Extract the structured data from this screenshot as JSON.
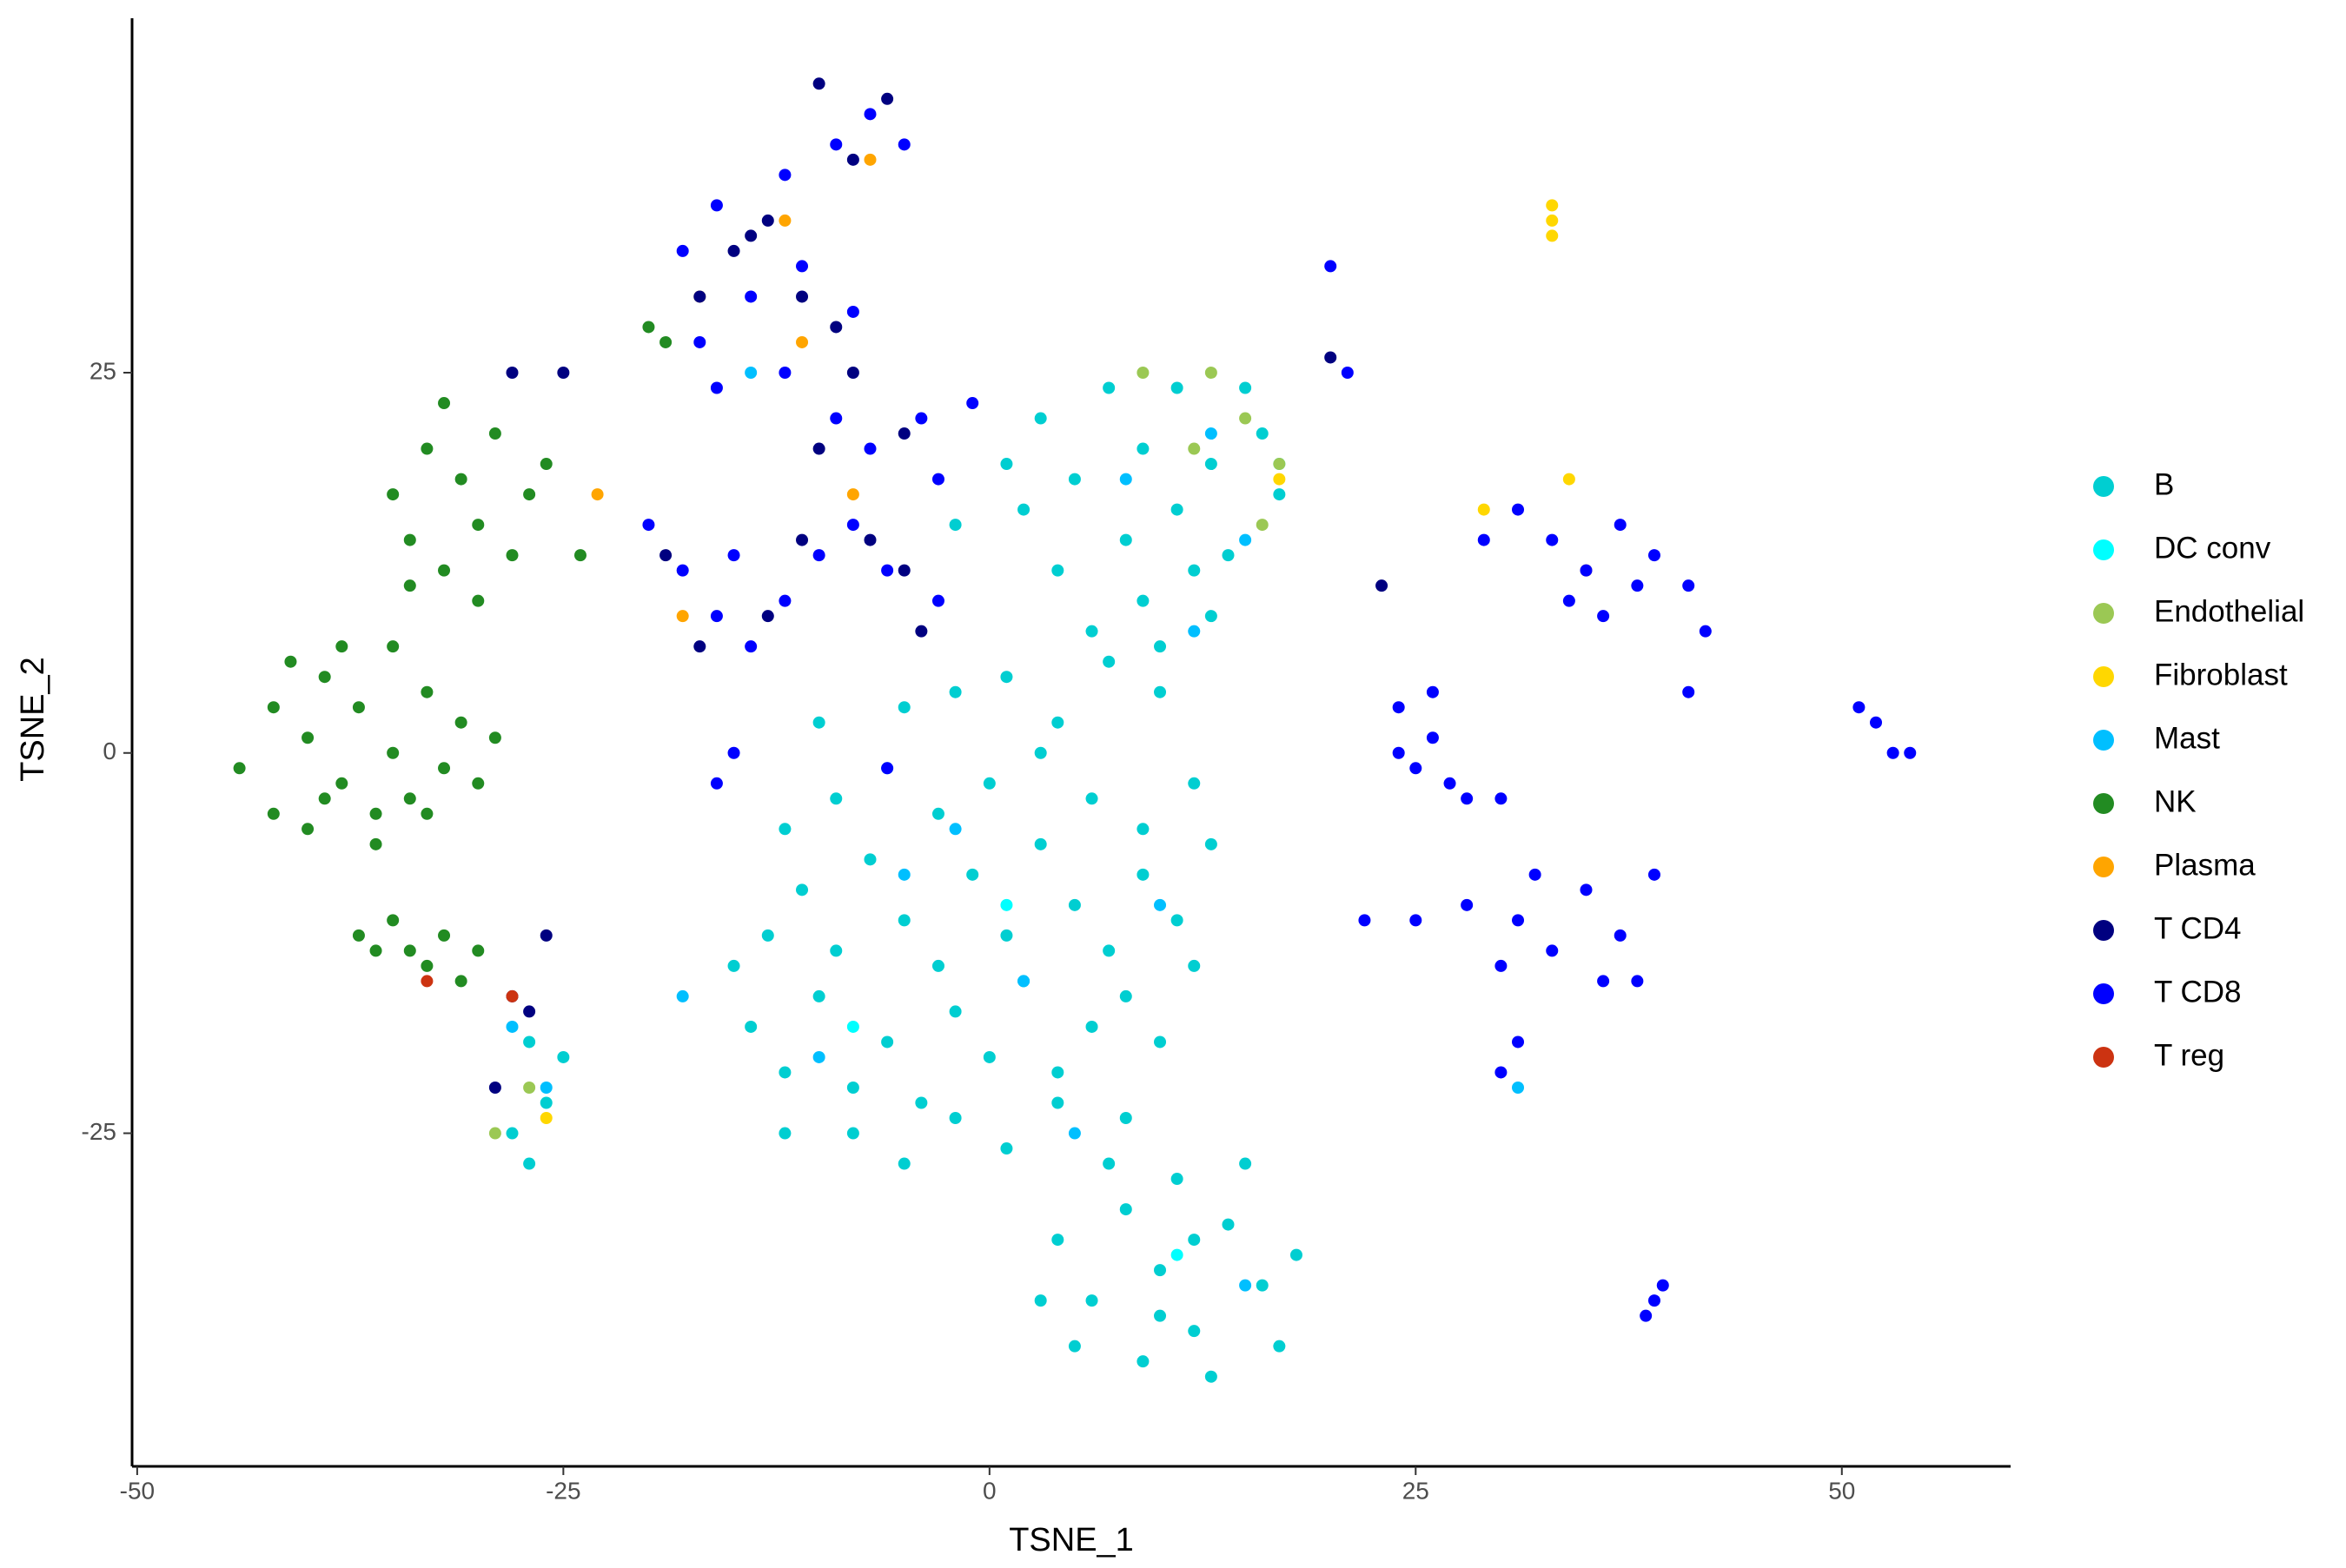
{
  "chart_data": {
    "type": "scatter",
    "xlabel": "TSNE_1",
    "ylabel": "TSNE_2",
    "xlim": [
      -50.3,
      59.9
    ],
    "ylim": [
      -46.9,
      48.3
    ],
    "xticks": [
      -50,
      -25,
      0,
      25,
      50
    ],
    "yticks": [
      -25,
      0,
      25
    ],
    "grid": false,
    "legend": "right",
    "series": [
      {
        "name": "B",
        "color": "#00CED1",
        "x": [
          -14,
          -12,
          -10,
          -8,
          -6,
          -4,
          -2,
          0,
          2,
          4,
          6,
          8,
          10,
          12,
          -13,
          -11,
          -9,
          -7,
          -5,
          -3,
          -1,
          1,
          3,
          5,
          7,
          9,
          11,
          -15,
          -12,
          -9,
          -6,
          -3,
          0,
          3,
          6,
          9,
          12,
          -10,
          -5,
          -2,
          1,
          4,
          7,
          10,
          13,
          -8,
          -5,
          -2,
          1,
          4,
          -12,
          8,
          6,
          9,
          12,
          8,
          11,
          14,
          5,
          9,
          13,
          16,
          3,
          7,
          11,
          15,
          2,
          17,
          10,
          13,
          4,
          -2,
          1,
          4,
          6,
          8,
          10,
          12,
          14,
          16,
          18,
          5,
          9,
          13,
          7,
          11,
          15,
          17,
          3,
          10,
          12,
          -28,
          -27,
          -26,
          -25,
          -27
        ],
        "values": [
          -18,
          -21,
          -16,
          -22,
          -19,
          -23,
          -17,
          -20,
          -15,
          -21,
          -18,
          -16,
          -19,
          -14,
          -12,
          -9,
          -13,
          -7,
          -11,
          -14,
          -8,
          -12,
          -6,
          -10,
          -13,
          -8,
          -11,
          -14,
          -5,
          -3,
          -1,
          -4,
          -2,
          0,
          -3,
          -5,
          -2,
          2,
          3,
          4,
          5,
          2,
          6,
          4,
          -6,
          -25,
          -27,
          -24,
          -26,
          -23,
          -25,
          -24,
          8,
          10,
          12,
          14,
          16,
          13,
          18,
          20,
          19,
          21,
          22,
          24,
          24,
          24,
          16,
          17,
          7,
          9,
          12,
          15,
          19,
          -32,
          -36,
          -30,
          -34,
          -38,
          -31,
          -35,
          -33,
          -39,
          -40,
          -41,
          -27,
          -28,
          -27,
          -39,
          -36,
          -37,
          -32,
          -25,
          -27,
          -23,
          -20,
          -19
        ]
      },
      {
        "name": "DC conv",
        "color": "#00FFFF",
        "x": [
          17,
          1,
          -8,
          11
        ],
        "values": [
          19,
          -10,
          -18,
          -33
        ]
      },
      {
        "name": "Endothelial",
        "color": "#9BC854",
        "x": [
          9,
          13,
          15,
          17,
          16,
          -27,
          -29,
          12
        ],
        "values": [
          25,
          25,
          22,
          19,
          15,
          -22,
          -25,
          20
        ]
      },
      {
        "name": "Fibroblast",
        "color": "#FFD700",
        "x": [
          33,
          33,
          33,
          29,
          34,
          -26,
          17
        ],
        "values": [
          36,
          35,
          34,
          16,
          18,
          -24,
          18
        ]
      },
      {
        "name": "Mast",
        "color": "#00BFFF",
        "x": [
          12,
          15,
          10,
          -5,
          2,
          -10,
          13,
          8,
          -2,
          5,
          -26,
          -28,
          -14,
          31,
          15,
          -18
        ],
        "values": [
          8,
          14,
          -10,
          -8,
          -15,
          -20,
          21,
          18,
          -5,
          -25,
          -22,
          -18,
          25,
          -22,
          -35,
          -16
        ]
      },
      {
        "name": "NK",
        "color": "#228B22",
        "x": [
          -44,
          -42,
          -42,
          -40,
          -40,
          -39,
          -38,
          -37,
          -36,
          -35,
          -35,
          -34,
          -33,
          -32,
          -31,
          -30,
          -38,
          -41,
          -36,
          -33,
          -29,
          -39,
          -35,
          -34,
          -33,
          -32,
          -31,
          -30,
          -29,
          -28,
          -27,
          -32,
          -26,
          -34,
          -30,
          -37,
          -35,
          -34,
          -33,
          -32,
          -31,
          -30,
          -36,
          -20,
          -19,
          -24
        ],
        "values": [
          -1,
          3,
          -4,
          1,
          -5,
          5,
          -2,
          3,
          -4,
          7,
          0,
          -3,
          4,
          -1,
          2,
          -2,
          7,
          6,
          -6,
          -4,
          1,
          -3,
          17,
          14,
          20,
          12,
          18,
          15,
          21,
          13,
          17,
          23,
          19,
          11,
          10,
          -12,
          -11,
          -13,
          -14,
          -12,
          -15,
          -13,
          -13,
          28,
          27,
          13
        ]
      },
      {
        "name": "Plasma",
        "color": "#FFA500",
        "x": [
          -17,
          -7,
          -12,
          -8,
          -23,
          35,
          -18,
          -11
        ],
        "values": [
          30,
          39,
          35,
          17,
          17,
          12,
          9,
          27
        ]
      },
      {
        "name": "T CD4",
        "color": "#000080",
        "x": [
          -10,
          -6,
          -8,
          -13,
          -11,
          -15,
          -9,
          -8,
          -5,
          -10,
          -14,
          -19,
          -13,
          -11,
          -7,
          -17,
          -17,
          -28,
          -25,
          -28,
          -27,
          -26,
          -29,
          -5,
          -4,
          23,
          20
        ],
        "values": [
          44,
          43,
          39,
          35,
          30,
          33,
          28,
          25,
          21,
          20,
          34,
          13,
          9,
          14,
          14,
          7,
          30,
          25,
          25,
          -16,
          -17,
          -12,
          -22,
          12,
          8,
          11,
          26
        ]
      },
      {
        "name": "T CD8",
        "color": "#0000FF",
        "x": [
          -7,
          -5,
          -9,
          -12,
          -16,
          -18,
          -17,
          -14,
          -11,
          -8,
          -12,
          -16,
          -9,
          -7,
          -4,
          -1,
          -20,
          -18,
          -16,
          -14,
          -12,
          -10,
          -8,
          -6,
          -3,
          -15,
          31,
          33,
          35,
          37,
          39,
          41,
          42,
          34,
          36,
          38,
          41,
          29,
          24,
          26,
          25,
          27,
          28,
          30,
          24,
          26,
          28,
          31,
          33,
          35,
          37,
          39,
          36,
          32,
          38,
          30,
          22,
          25,
          30,
          31,
          52,
          53,
          54,
          51,
          39,
          39.5,
          38.5,
          20,
          21,
          -3,
          -6,
          -16,
          -15
        ],
        "values": [
          42,
          40,
          40,
          38,
          36,
          33,
          27,
          30,
          32,
          29,
          25,
          24,
          22,
          20,
          22,
          23,
          15,
          12,
          9,
          7,
          10,
          13,
          15,
          12,
          18,
          13,
          16,
          14,
          12,
          15,
          13,
          11,
          8,
          10,
          9,
          11,
          4,
          14,
          3,
          1,
          -1,
          -2,
          -3,
          -3,
          0,
          4,
          -10,
          -11,
          -13,
          -9,
          -12,
          -8,
          -15,
          -8,
          -15,
          -14,
          -11,
          -11,
          -21,
          -19,
          2,
          0,
          0,
          3,
          -36,
          -35,
          -37,
          32,
          25,
          10,
          -1,
          -2,
          0
        ]
      },
      {
        "name": "T reg",
        "color": "#CC3311",
        "x": [
          -28,
          -33
        ],
        "values": [
          -16,
          -15
        ]
      }
    ]
  }
}
